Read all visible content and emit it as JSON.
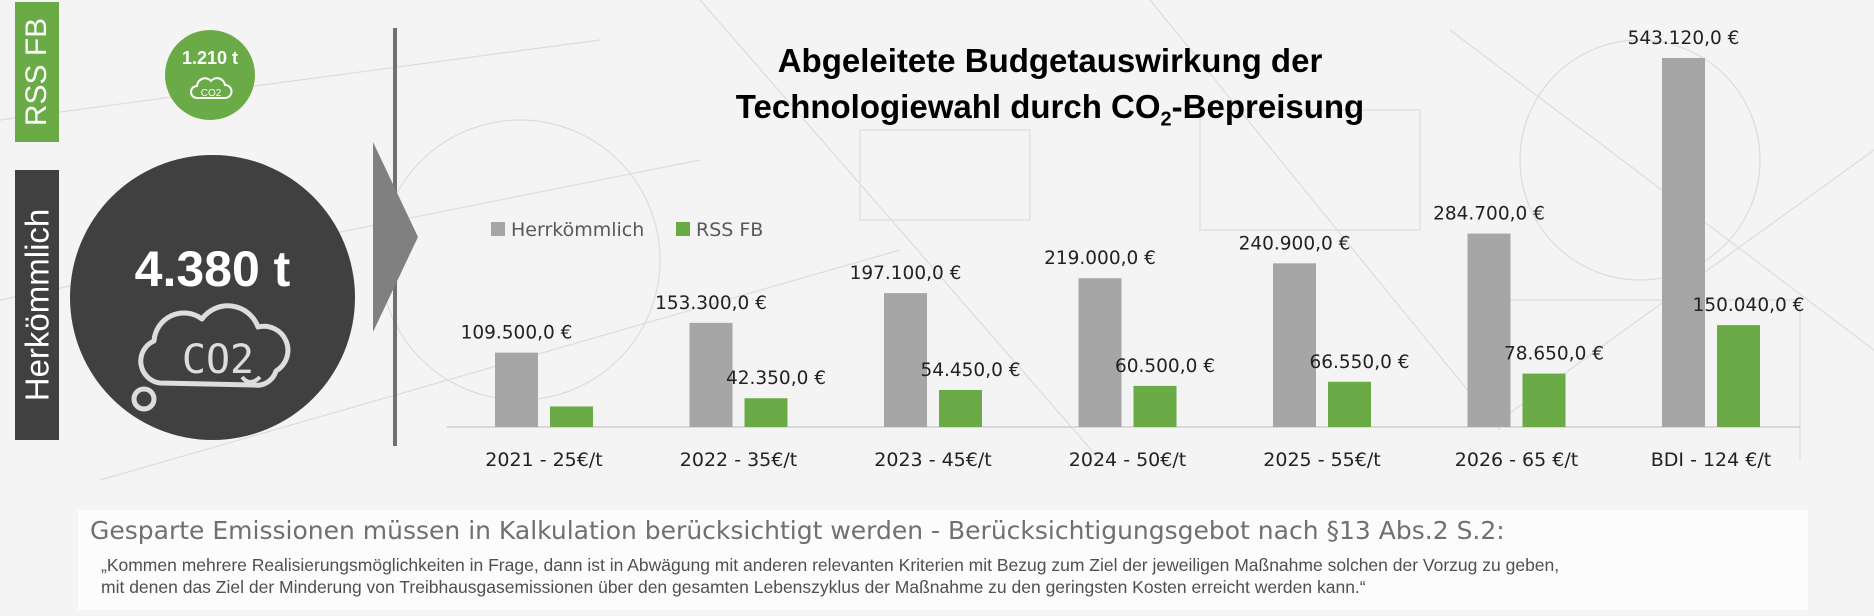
{
  "left_panel": {
    "rss_tab_label": "RSS FB",
    "herk_tab_label": "Herkömmlich",
    "rss_emission": "1.210 t",
    "herk_emission": "4.380 t",
    "small_icon_text": "CO2",
    "big_icon_text": "CO2",
    "colors": {
      "green": "#6aab47",
      "dark": "#404040"
    }
  },
  "chart_data": {
    "type": "bar",
    "title_main": "Abgeleitete Budgetauswirkung der",
    "title_line2_a": "Technologiewahl durch CO",
    "title_line2_sub": "2",
    "title_line2_b": "-Bepreisung",
    "categories": [
      "2021 - 25€/t",
      "2022 - 35€/t",
      "2023 - 45€/t",
      "2024 - 50€/t",
      "2025 - 55€/t",
      "2026 - 65 €/t",
      "BDI - 124 €/t"
    ],
    "series": [
      {
        "name": "Herrkömmlich",
        "color": "#a6a6a6",
        "values": [
          109500,
          153300,
          197100,
          219000,
          240900,
          284700,
          543120
        ],
        "labels": [
          "109.500,0 €",
          "153.300,0 €",
          "197.100,0 €",
          "219.000,0 €",
          "240.900,0 €",
          "284.700,0 €",
          "543.120,0 €"
        ]
      },
      {
        "name": "RSS FB",
        "color": "#6aab47",
        "values": [
          30250,
          42350,
          54450,
          60500,
          66550,
          78650,
          150040
        ],
        "labels": [
          "",
          "42.350,0 €",
          "54.450,0 €",
          "60.500,0 €",
          "66.550,0 €",
          "78.650,0 €",
          "150.040,0 €"
        ]
      }
    ],
    "ylim": [
      0,
      543120
    ],
    "grid": false,
    "legend": "top-left"
  },
  "note": {
    "heading": "Gesparte Emissionen müssen in Kalkulation berücksichtigt werden -  Berücksichtigungsgebot nach §13 Abs.2 S.2:",
    "quote_line1": "„Kommen mehrere Realisierungsmöglichkeiten in Frage, dann ist in Abwägung mit anderen relevanten Kriterien mit Bezug zum Ziel der jeweiligen Maßnahme solchen der Vorzug zu geben,",
    "quote_line2": "mit denen das Ziel der Minderung von Treibhausgasemissionen über den gesamten Lebenszyklus der Maßnahme zu den geringsten Kosten erreicht werden kann.“"
  }
}
